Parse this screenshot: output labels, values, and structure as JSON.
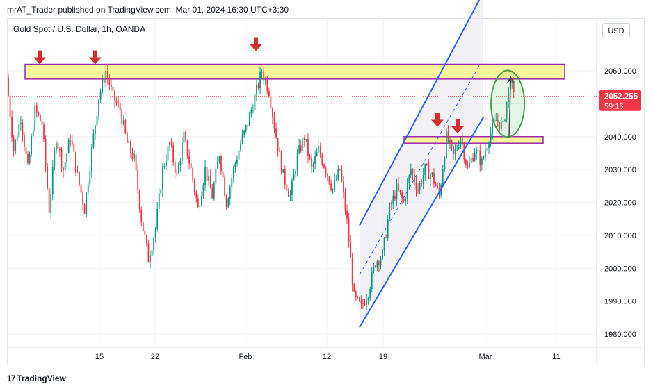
{
  "header": "mrAT_Trader published on TradingView.com, Mar 01, 2024 16:30 UTC+3:30",
  "symbol_label": "Gold Spot / U.S. Dollar, 1h, OANDA",
  "currency_button": "USD",
  "footer_logo": "TradingView",
  "chart_data": {
    "type": "candlestick",
    "symbol": "Gold Spot / U.S. Dollar",
    "interval": "1h",
    "source": "OANDA",
    "y_ticks": [
      "2060.000",
      "2050.000",
      "2040.000",
      "2030.000",
      "2020.000",
      "2010.000",
      "2000.000",
      "1990.000",
      "1980.000"
    ],
    "y_tick_values": [
      2060,
      2050,
      2040,
      2030,
      2020,
      2010,
      2000,
      1990,
      1980
    ],
    "x_ticks": [
      "15",
      "22",
      "Feb",
      "12",
      "19",
      "Mar",
      "11"
    ],
    "ylim": [
      1976,
      2072
    ],
    "last_price": "2052.255",
    "countdown": "59:16",
    "path_points": [
      [
        0,
        2058
      ],
      [
        4,
        2036
      ],
      [
        8,
        2046
      ],
      [
        12,
        2030
      ],
      [
        16,
        2048
      ],
      [
        20,
        2044
      ],
      [
        24,
        2018
      ],
      [
        28,
        2040
      ],
      [
        32,
        2030
      ],
      [
        36,
        2040
      ],
      [
        40,
        2028
      ],
      [
        44,
        2018
      ],
      [
        48,
        2036
      ],
      [
        52,
        2052
      ],
      [
        56,
        2060
      ],
      [
        60,
        2052
      ],
      [
        64,
        2048
      ],
      [
        68,
        2038
      ],
      [
        72,
        2033
      ],
      [
        76,
        2015
      ],
      [
        80,
        2003
      ],
      [
        84,
        2012
      ],
      [
        88,
        2030
      ],
      [
        92,
        2038
      ],
      [
        96,
        2028
      ],
      [
        100,
        2040
      ],
      [
        104,
        2030
      ],
      [
        108,
        2018
      ],
      [
        112,
        2030
      ],
      [
        116,
        2022
      ],
      [
        120,
        2035
      ],
      [
        124,
        2020
      ],
      [
        128,
        2030
      ],
      [
        132,
        2038
      ],
      [
        136,
        2044
      ],
      [
        140,
        2052
      ],
      [
        144,
        2060
      ],
      [
        148,
        2054
      ],
      [
        152,
        2040
      ],
      [
        156,
        2028
      ],
      [
        160,
        2022
      ],
      [
        164,
        2034
      ],
      [
        168,
        2040
      ],
      [
        172,
        2030
      ],
      [
        176,
        2036
      ],
      [
        180,
        2030
      ],
      [
        184,
        2024
      ],
      [
        188,
        2030
      ],
      [
        192,
        2014
      ],
      [
        196,
        1991
      ],
      [
        200,
        1988
      ],
      [
        204,
        1993
      ],
      [
        208,
        2002
      ],
      [
        212,
        2004
      ],
      [
        216,
        2018
      ],
      [
        220,
        2024
      ],
      [
        224,
        2020
      ],
      [
        228,
        2030
      ],
      [
        232,
        2024
      ],
      [
        236,
        2030
      ],
      [
        240,
        2028
      ],
      [
        244,
        2022
      ],
      [
        248,
        2040
      ],
      [
        252,
        2034
      ],
      [
        256,
        2040
      ],
      [
        260,
        2030
      ],
      [
        264,
        2036
      ],
      [
        268,
        2032
      ],
      [
        272,
        2040
      ],
      [
        276,
        2045
      ],
      [
        280,
        2043
      ],
      [
        284,
        2058
      ],
      [
        286,
        2052
      ]
    ],
    "resistance_zone": [
      2057.5,
      2062
    ],
    "support_zone": [
      2038,
      2040
    ],
    "channel": {
      "upper": [
        [
          198,
          2013
        ],
        [
          268,
          2084
        ]
      ],
      "lower": [
        [
          198,
          1982
        ],
        [
          268,
          2046
        ]
      ],
      "mid": [
        [
          198,
          1998
        ],
        [
          266,
          2062
        ]
      ]
    },
    "projection_arrow": [
      [
        280,
        2040
      ],
      [
        288,
        2058
      ]
    ],
    "arrow_markers": [
      [
        2,
        2062
      ],
      [
        13,
        2062
      ],
      [
        48,
        2066
      ],
      [
        102,
        2043
      ],
      [
        112,
        2041
      ]
    ],
    "highlight_ellipse": [
      282,
      2050
    ],
    "colors": {
      "up": "#089981",
      "down": "#f23645",
      "channel": "#2962ff",
      "zone_fill": "#fff59d",
      "zone_border": "#9c27b0",
      "arrow": "#d32f2f",
      "ellipse": "#43a047",
      "price_label": "#f23645"
    }
  }
}
